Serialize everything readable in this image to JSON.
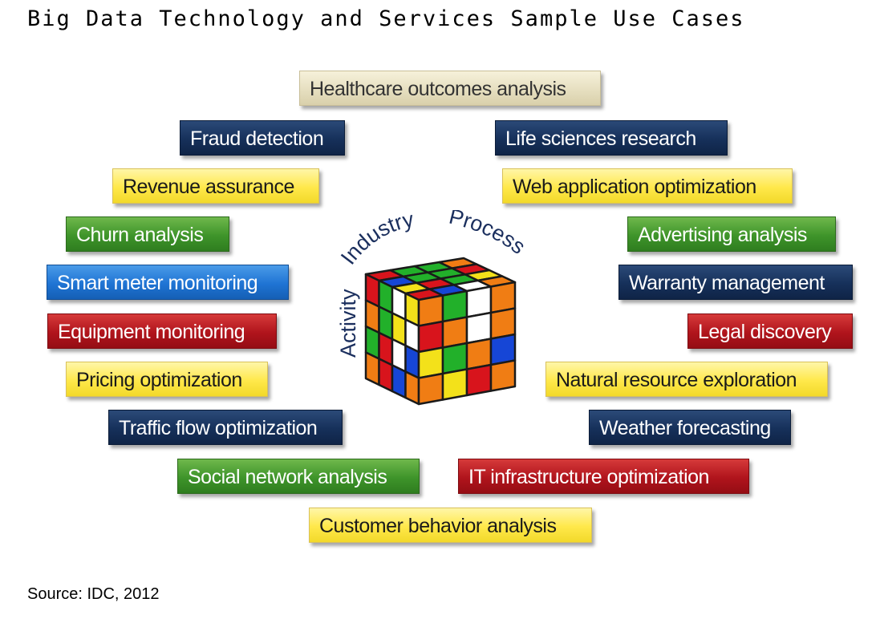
{
  "title": "Big Data Technology and Services Sample Use Cases",
  "source": "Source: IDC, 2012",
  "cube": {
    "labels": {
      "activity": "Activity",
      "industry": "Industry",
      "process": "Process"
    }
  },
  "use_cases": {
    "healthcare": "Healthcare outcomes analysis",
    "fraud": "Fraud detection",
    "life_sciences": "Life sciences research",
    "revenue": "Revenue assurance",
    "web_app": "Web application optimization",
    "churn": "Churn analysis",
    "advertising": "Advertising analysis",
    "smart_meter": "Smart meter monitoring",
    "warranty": "Warranty management",
    "equipment": "Equipment monitoring",
    "legal": "Legal discovery",
    "pricing": "Pricing optimization",
    "natural_resource": "Natural resource exploration",
    "traffic": "Traffic flow optimization",
    "weather": "Weather forecasting",
    "social": "Social network analysis",
    "it_infra": "IT infrastructure optimization",
    "customer": "Customer behavior analysis"
  },
  "colors": {
    "navy": "#16305a",
    "yellow": "#ffe84a",
    "green": "#3e942a",
    "blue": "#1f74d4",
    "red": "#b0141c",
    "tan": "#e6dfc0"
  }
}
